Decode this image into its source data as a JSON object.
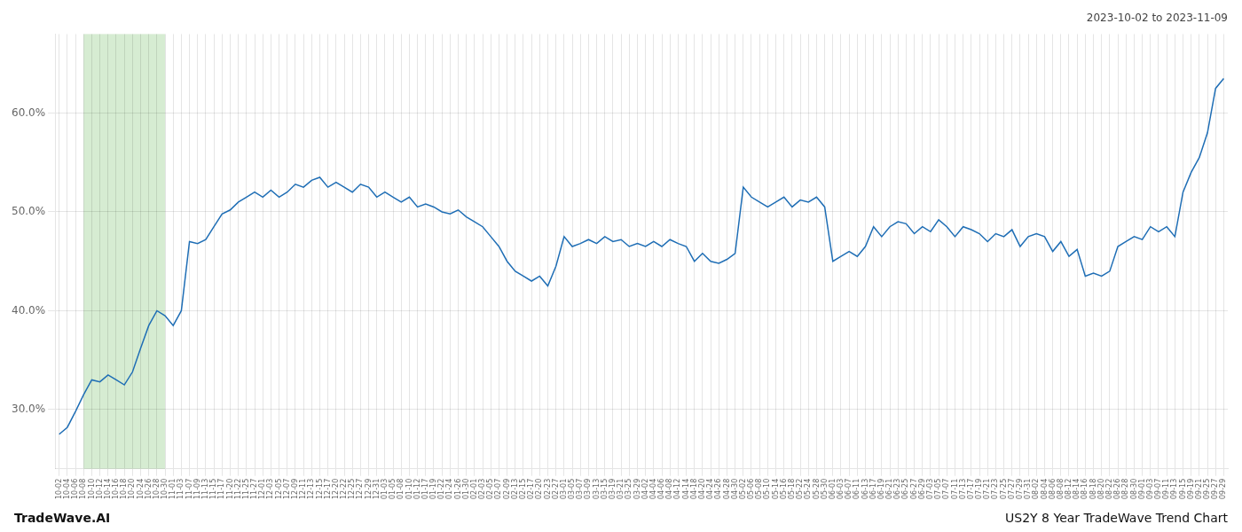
{
  "chart_data": {
    "type": "line",
    "title": "2023-10-02 to 2023-11-09",
    "annotations": [
      "TradeWave.AI",
      "US2Y 8 Year TradeWave Trend Chart"
    ],
    "color": "#1f6eb5",
    "grid": true,
    "shaded_region": {
      "from": "10-08",
      "to": "10-30",
      "color": "#d6ecd2"
    },
    "ylim": [
      24,
      68
    ],
    "yticks": [
      {
        "value": 30.0,
        "label": "30.0%"
      },
      {
        "value": 40.0,
        "label": "40.0%"
      },
      {
        "value": 50.0,
        "label": "50.0%"
      },
      {
        "value": 60.0,
        "label": "60.0%"
      }
    ],
    "categories": [
      "10-02",
      "10-04",
      "10-06",
      "10-08",
      "10-10",
      "10-12",
      "10-14",
      "10-16",
      "10-18",
      "10-20",
      "10-24",
      "10-26",
      "10-28",
      "10-30",
      "11-01",
      "11-03",
      "11-07",
      "11-09",
      "11-13",
      "11-15",
      "11-17",
      "11-20",
      "11-22",
      "11-25",
      "11-27",
      "12-01",
      "12-03",
      "12-05",
      "12-07",
      "12-09",
      "12-11",
      "12-13",
      "12-15",
      "12-17",
      "12-20",
      "12-22",
      "12-25",
      "12-27",
      "12-29",
      "12-31",
      "01-03",
      "01-05",
      "01-08",
      "01-10",
      "01-12",
      "01-17",
      "01-19",
      "01-22",
      "01-24",
      "01-26",
      "01-30",
      "02-01",
      "02-03",
      "02-05",
      "02-07",
      "02-09",
      "02-13",
      "02-15",
      "02-17",
      "02-20",
      "02-23",
      "02-27",
      "03-01",
      "03-05",
      "03-07",
      "03-09",
      "03-13",
      "03-15",
      "03-19",
      "03-21",
      "03-25",
      "03-29",
      "04-02",
      "04-04",
      "04-06",
      "04-08",
      "04-12",
      "04-14",
      "04-18",
      "04-20",
      "04-24",
      "04-26",
      "04-28",
      "04-30",
      "05-02",
      "05-06",
      "05-08",
      "05-10",
      "05-14",
      "05-16",
      "05-18",
      "05-22",
      "05-24",
      "05-28",
      "05-30",
      "06-01",
      "06-03",
      "06-07",
      "06-11",
      "06-13",
      "06-17",
      "06-19",
      "06-21",
      "06-23",
      "06-25",
      "06-27",
      "06-29",
      "07-03",
      "07-05",
      "07-07",
      "07-11",
      "07-13",
      "07-17",
      "07-19",
      "07-21",
      "07-23",
      "07-25",
      "07-27",
      "07-29",
      "07-31",
      "08-02",
      "08-04",
      "08-06",
      "08-08",
      "08-12",
      "08-14",
      "08-16",
      "08-18",
      "08-20",
      "08-22",
      "08-26",
      "08-28",
      "08-30",
      "09-01",
      "09-03",
      "09-07",
      "09-11",
      "09-13",
      "09-15",
      "09-19",
      "09-21",
      "09-25",
      "09-27",
      "09-29"
    ],
    "values": [
      27.5,
      28.2,
      29.8,
      31.5,
      33.0,
      32.8,
      33.5,
      33.0,
      32.5,
      33.8,
      36.2,
      38.5,
      40.0,
      39.5,
      38.5,
      40.0,
      47.0,
      46.8,
      47.2,
      48.5,
      49.8,
      50.2,
      51.0,
      51.5,
      52.0,
      51.5,
      52.2,
      51.5,
      52.0,
      52.8,
      52.5,
      53.2,
      53.5,
      52.5,
      53.0,
      52.5,
      52.0,
      52.8,
      52.5,
      51.5,
      52.0,
      51.5,
      51.0,
      51.5,
      50.5,
      50.8,
      50.5,
      50.0,
      49.8,
      50.2,
      49.5,
      49.0,
      48.5,
      47.5,
      46.5,
      45.0,
      44.0,
      43.5,
      43.0,
      43.5,
      42.5,
      44.5,
      47.5,
      46.5,
      46.8,
      47.2,
      46.8,
      47.5,
      47.0,
      47.2,
      46.5,
      46.8,
      46.5,
      47.0,
      46.5,
      47.2,
      46.8,
      46.5,
      45.0,
      45.8,
      45.0,
      44.8,
      45.2,
      45.8,
      52.5,
      51.5,
      51.0,
      50.5,
      51.0,
      51.5,
      50.5,
      51.2,
      51.0,
      51.5,
      50.5,
      45.0,
      45.5,
      46.0,
      45.5,
      46.5,
      48.5,
      47.5,
      48.5,
      49.0,
      48.8,
      47.8,
      48.5,
      48.0,
      49.2,
      48.5,
      47.5,
      48.5,
      48.2,
      47.8,
      47.0,
      47.8,
      47.5,
      48.2,
      46.5,
      47.5,
      47.8,
      47.5,
      46.0,
      47.0,
      45.5,
      46.2,
      43.5,
      43.8,
      43.5,
      44.0,
      46.5,
      47.0,
      47.5,
      47.2,
      48.5,
      48.0,
      48.5,
      47.5,
      52.0,
      54.0,
      55.5,
      58.0,
      62.5,
      63.5
    ]
  }
}
